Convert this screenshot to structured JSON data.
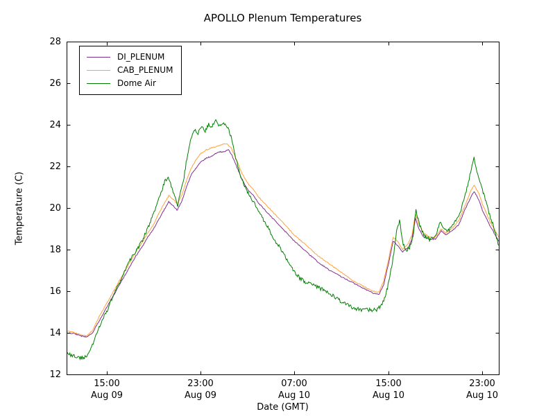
{
  "chart_data": {
    "type": "line",
    "title": "APOLLO Plenum Temperatures",
    "xlabel": "Date (GMT)",
    "ylabel": "Temperature (C)",
    "ylim": [
      12,
      28
    ],
    "yticks": [
      12,
      14,
      16,
      18,
      20,
      22,
      24,
      26,
      28
    ],
    "xlim": [
      -0.4,
      36.4
    ],
    "xticks": [
      {
        "t": 3,
        "time": "15:00",
        "date": "Aug 09"
      },
      {
        "t": 11,
        "time": "23:00",
        "date": "Aug 09"
      },
      {
        "t": 19,
        "time": "07:00",
        "date": "Aug 10"
      },
      {
        "t": 27,
        "time": "15:00",
        "date": "Aug 10"
      },
      {
        "t": 35,
        "time": "23:00",
        "date": "Aug 10"
      }
    ],
    "grid": false,
    "legend_position": "upper left",
    "series": [
      {
        "name": "DI_PLENUM",
        "color": "#7e2f8e",
        "jitter": 0.025,
        "points": [
          [
            -0.4,
            14.0
          ],
          [
            0.3,
            13.95
          ],
          [
            0.8,
            13.85
          ],
          [
            1.3,
            13.8
          ],
          [
            1.8,
            14.0
          ],
          [
            2.3,
            14.5
          ],
          [
            3,
            15.2
          ],
          [
            3.5,
            15.7
          ],
          [
            4,
            16.2
          ],
          [
            4.5,
            16.7
          ],
          [
            5,
            17.2
          ],
          [
            5.5,
            17.7
          ],
          [
            6,
            18.1
          ],
          [
            6.5,
            18.6
          ],
          [
            7,
            19.0
          ],
          [
            7.5,
            19.5
          ],
          [
            8,
            20.0
          ],
          [
            8.3,
            20.3
          ],
          [
            8.7,
            20.1
          ],
          [
            9,
            19.9
          ],
          [
            9.4,
            20.3
          ],
          [
            9.8,
            21.0
          ],
          [
            10.2,
            21.6
          ],
          [
            10.6,
            21.9
          ],
          [
            11,
            22.2
          ],
          [
            11.5,
            22.4
          ],
          [
            12,
            22.5
          ],
          [
            12.5,
            22.7
          ],
          [
            13,
            22.7
          ],
          [
            13.4,
            22.8
          ],
          [
            13.7,
            22.5
          ],
          [
            14,
            22.1
          ],
          [
            14.5,
            21.4
          ],
          [
            15,
            20.9
          ],
          [
            15.5,
            20.6
          ],
          [
            16,
            20.2
          ],
          [
            17,
            19.6
          ],
          [
            18,
            19.0
          ],
          [
            19,
            18.4
          ],
          [
            20,
            17.9
          ],
          [
            21,
            17.4
          ],
          [
            22,
            17.0
          ],
          [
            23,
            16.7
          ],
          [
            24,
            16.4
          ],
          [
            25,
            16.1
          ],
          [
            25.7,
            15.9
          ],
          [
            26.2,
            15.85
          ],
          [
            26.6,
            16.3
          ],
          [
            27,
            17.3
          ],
          [
            27.4,
            18.4
          ],
          [
            27.8,
            18.2
          ],
          [
            28.2,
            17.9
          ],
          [
            28.7,
            18.1
          ],
          [
            29,
            18.5
          ],
          [
            29.3,
            19.5
          ],
          [
            29.6,
            19.0
          ],
          [
            30,
            18.6
          ],
          [
            30.5,
            18.5
          ],
          [
            31,
            18.5
          ],
          [
            31.5,
            18.9
          ],
          [
            31.9,
            18.7
          ],
          [
            32.4,
            18.9
          ],
          [
            33,
            19.2
          ],
          [
            33.5,
            19.9
          ],
          [
            34,
            20.5
          ],
          [
            34.3,
            20.8
          ],
          [
            34.7,
            20.4
          ],
          [
            35,
            19.9
          ],
          [
            35.6,
            19.2
          ],
          [
            36.4,
            18.4
          ]
        ]
      },
      {
        "name": "CAB_PLENUM",
        "color": "#ffa13a",
        "jitter": 0.025,
        "points": [
          [
            -0.4,
            14.1
          ],
          [
            0.3,
            14.0
          ],
          [
            0.8,
            13.9
          ],
          [
            1.3,
            13.85
          ],
          [
            1.8,
            14.1
          ],
          [
            2.3,
            14.7
          ],
          [
            3,
            15.4
          ],
          [
            3.5,
            15.9
          ],
          [
            4,
            16.4
          ],
          [
            4.5,
            16.9
          ],
          [
            5,
            17.4
          ],
          [
            5.5,
            17.9
          ],
          [
            6,
            18.3
          ],
          [
            6.5,
            18.8
          ],
          [
            7,
            19.2
          ],
          [
            7.5,
            19.8
          ],
          [
            8,
            20.3
          ],
          [
            8.3,
            20.6
          ],
          [
            8.7,
            20.4
          ],
          [
            9,
            20.2
          ],
          [
            9.4,
            20.6
          ],
          [
            9.8,
            21.3
          ],
          [
            10.2,
            21.9
          ],
          [
            10.6,
            22.3
          ],
          [
            11,
            22.6
          ],
          [
            11.5,
            22.8
          ],
          [
            12,
            22.9
          ],
          [
            12.6,
            23.0
          ],
          [
            13.2,
            23.1
          ],
          [
            13.6,
            22.9
          ],
          [
            14,
            22.4
          ],
          [
            14.5,
            21.7
          ],
          [
            15,
            21.2
          ],
          [
            15.5,
            20.9
          ],
          [
            16,
            20.5
          ],
          [
            17,
            19.9
          ],
          [
            18,
            19.3
          ],
          [
            19,
            18.7
          ],
          [
            20,
            18.2
          ],
          [
            21,
            17.7
          ],
          [
            22,
            17.3
          ],
          [
            23,
            16.9
          ],
          [
            24,
            16.5
          ],
          [
            25,
            16.2
          ],
          [
            25.7,
            16.0
          ],
          [
            26.2,
            15.95
          ],
          [
            26.6,
            16.5
          ],
          [
            27,
            17.5
          ],
          [
            27.4,
            18.6
          ],
          [
            27.8,
            18.4
          ],
          [
            28.2,
            18.0
          ],
          [
            28.7,
            18.3
          ],
          [
            29,
            18.7
          ],
          [
            29.3,
            19.7
          ],
          [
            29.6,
            19.2
          ],
          [
            30,
            18.8
          ],
          [
            30.5,
            18.6
          ],
          [
            31,
            18.6
          ],
          [
            31.5,
            19.0
          ],
          [
            31.9,
            18.8
          ],
          [
            32.4,
            19.0
          ],
          [
            33,
            19.4
          ],
          [
            33.5,
            20.1
          ],
          [
            34,
            20.8
          ],
          [
            34.3,
            21.1
          ],
          [
            34.7,
            20.7
          ],
          [
            35,
            20.2
          ],
          [
            35.6,
            19.4
          ],
          [
            36.4,
            18.6
          ]
        ]
      },
      {
        "name": "Dome Air",
        "color": "#007f00",
        "jitter": 0.09,
        "points": [
          [
            -0.4,
            13.0
          ],
          [
            0.3,
            12.9
          ],
          [
            0.8,
            12.8
          ],
          [
            1.3,
            12.85
          ],
          [
            1.8,
            13.4
          ],
          [
            2.3,
            14.2
          ],
          [
            3,
            15.0
          ],
          [
            3.5,
            15.7
          ],
          [
            4,
            16.3
          ],
          [
            4.5,
            16.9
          ],
          [
            5,
            17.5
          ],
          [
            5.5,
            17.9
          ],
          [
            6,
            18.4
          ],
          [
            6.5,
            19.0
          ],
          [
            7,
            19.7
          ],
          [
            7.5,
            20.5
          ],
          [
            7.9,
            21.2
          ],
          [
            8.2,
            21.5
          ],
          [
            8.5,
            21.1
          ],
          [
            8.8,
            20.6
          ],
          [
            9.05,
            20.1
          ],
          [
            9.3,
            20.8
          ],
          [
            9.6,
            21.5
          ],
          [
            9.9,
            22.6
          ],
          [
            10.2,
            23.3
          ],
          [
            10.5,
            23.8
          ],
          [
            10.8,
            23.6
          ],
          [
            11.1,
            23.9
          ],
          [
            11.4,
            23.7
          ],
          [
            11.7,
            24.0
          ],
          [
            12,
            23.9
          ],
          [
            12.3,
            24.3
          ],
          [
            12.6,
            23.9
          ],
          [
            12.9,
            24.1
          ],
          [
            13.3,
            23.9
          ],
          [
            13.6,
            23.4
          ],
          [
            14,
            22.4
          ],
          [
            14.5,
            21.4
          ],
          [
            15,
            20.8
          ],
          [
            15.5,
            20.3
          ],
          [
            16,
            19.8
          ],
          [
            16.5,
            19.3
          ],
          [
            17,
            18.8
          ],
          [
            17.5,
            18.3
          ],
          [
            18,
            17.9
          ],
          [
            18.5,
            17.4
          ],
          [
            19,
            16.9
          ],
          [
            19.5,
            16.6
          ],
          [
            20,
            16.4
          ],
          [
            20.7,
            16.3
          ],
          [
            21.3,
            16.1
          ],
          [
            22,
            15.9
          ],
          [
            22.7,
            15.6
          ],
          [
            23.3,
            15.4
          ],
          [
            24,
            15.2
          ],
          [
            24.7,
            15.1
          ],
          [
            25.4,
            15.1
          ],
          [
            26,
            15.1
          ],
          [
            26.4,
            15.3
          ],
          [
            26.8,
            15.9
          ],
          [
            27.1,
            16.6
          ],
          [
            27.4,
            17.6
          ],
          [
            27.7,
            18.9
          ],
          [
            27.95,
            19.4
          ],
          [
            28.2,
            18.4
          ],
          [
            28.5,
            17.9
          ],
          [
            28.8,
            18.1
          ],
          [
            29.1,
            18.6
          ],
          [
            29.35,
            19.9
          ],
          [
            29.6,
            19.3
          ],
          [
            30,
            18.7
          ],
          [
            30.5,
            18.5
          ],
          [
            31,
            18.6
          ],
          [
            31.4,
            19.3
          ],
          [
            31.8,
            18.9
          ],
          [
            32.3,
            19.0
          ],
          [
            33,
            19.6
          ],
          [
            33.5,
            20.5
          ],
          [
            34,
            21.7
          ],
          [
            34.3,
            22.4
          ],
          [
            34.6,
            21.6
          ],
          [
            35,
            20.9
          ],
          [
            35.5,
            19.9
          ],
          [
            36,
            19.0
          ],
          [
            36.4,
            18.2
          ]
        ]
      }
    ]
  }
}
